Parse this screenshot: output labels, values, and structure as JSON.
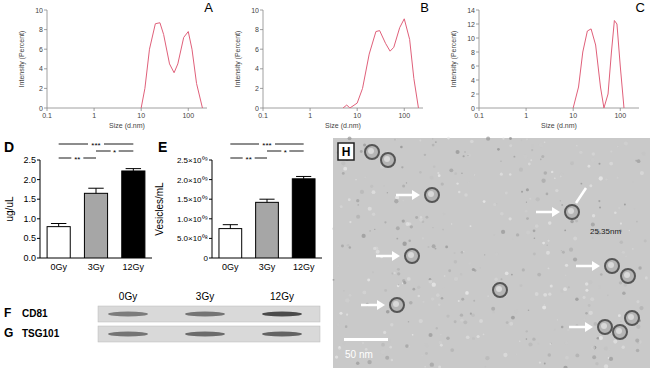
{
  "chart_data": [
    {
      "type": "line",
      "title": "A",
      "xlabel": "Size (d.nm)",
      "ylabel": "Intensity (Percent)",
      "log": "x",
      "grid": false,
      "color": "#e0607a",
      "x": [
        10,
        12,
        15,
        20,
        25,
        30,
        40,
        50,
        60,
        80,
        100,
        120,
        150,
        200
      ],
      "values": [
        0,
        2,
        6,
        8.6,
        8.7,
        7.5,
        4.5,
        3.6,
        4.5,
        7.2,
        7.8,
        6,
        2.5,
        0
      ],
      "xlim": [
        0.1,
        250
      ],
      "xticks": [
        0.1,
        1,
        10,
        100
      ],
      "ylim": [
        0,
        10
      ],
      "yticks": [
        0,
        2,
        4,
        6,
        8,
        10
      ]
    },
    {
      "type": "line",
      "title": "B",
      "xlabel": "Size (d.nm)",
      "ylabel": "Intensity (Percent)",
      "log": "x",
      "grid": false,
      "color": "#e0607a",
      "x": [
        5,
        6,
        7,
        10,
        13,
        18,
        25,
        30,
        40,
        50,
        60,
        80,
        100,
        130,
        160,
        200
      ],
      "values": [
        0,
        0.3,
        0,
        0.5,
        2,
        5.5,
        7.8,
        7.9,
        6.6,
        5.8,
        6.2,
        8.2,
        9.1,
        7,
        3,
        0
      ],
      "xlim": [
        0.1,
        250
      ],
      "xticks": [
        0.1,
        1,
        10,
        100
      ],
      "ylim": [
        0,
        10
      ],
      "yticks": [
        0,
        2,
        4,
        6,
        8,
        10
      ]
    },
    {
      "type": "line",
      "title": "C",
      "xlabel": "Size (d.nm)",
      "ylabel": "Intensity (Percent)",
      "log": "x",
      "grid": false,
      "color": "#e0607a",
      "x": [
        10,
        13,
        16,
        20,
        24,
        30,
        38,
        45,
        55,
        65,
        75,
        85,
        100,
        120
      ],
      "values": [
        0,
        3,
        8,
        11,
        11.3,
        9,
        3,
        0,
        2,
        8,
        12.5,
        12,
        6,
        0
      ],
      "xlim": [
        0.1,
        250
      ],
      "xticks": [
        0.1,
        1,
        10,
        100
      ],
      "ylim": [
        0,
        14
      ],
      "yticks": [
        0,
        2,
        4,
        6,
        8,
        10,
        12,
        14
      ]
    },
    {
      "type": "bar",
      "title": "D",
      "ylabel": "ug/uL",
      "grid": false,
      "categories": [
        "0Gy",
        "3Gy",
        "12Gy"
      ],
      "values": [
        0.8,
        1.65,
        2.22
      ],
      "errors": [
        0.08,
        0.13,
        0.06
      ],
      "colors": [
        "#ffffff",
        "#a6a6a6",
        "#000000"
      ],
      "ylim": [
        0,
        2.5
      ],
      "yticks": [
        {
          "value": 0,
          "label": "0.0"
        },
        {
          "value": 0.5,
          "label": "0.5"
        },
        {
          "value": 1,
          "label": "1.0"
        },
        {
          "value": 1.5,
          "label": "1.5"
        },
        {
          "value": 2,
          "label": "2.0"
        },
        {
          "value": 2.5,
          "label": "2.5"
        }
      ],
      "annotations": [
        {
          "label": "***",
          "from": "0Gy",
          "to": "12Gy"
        },
        {
          "label": "*",
          "from": "3Gy",
          "to": "12Gy"
        },
        {
          "label": "**",
          "from": "0Gy",
          "to": "3Gy"
        }
      ]
    },
    {
      "type": "bar",
      "title": "E",
      "ylabel": "Vesicles/mL",
      "grid": false,
      "categories": [
        "0Gy",
        "3Gy",
        "12Gy"
      ],
      "values": [
        750000000,
        1420000000,
        2020000000
      ],
      "errors": [
        100000000,
        80000000,
        60000000
      ],
      "colors": [
        "#ffffff",
        "#a6a6a6",
        "#000000"
      ],
      "ylim": [
        0,
        2500000000
      ],
      "yticks": [
        0,
        {
          "value": 500000000,
          "label": "5.0×10⁰⁸"
        },
        {
          "value": 1000000000,
          "label": "1.0×10⁰⁹"
        },
        {
          "value": 1500000000,
          "label": "1.5×10⁰⁹"
        },
        {
          "value": 2000000000,
          "label": "2.0×10⁰⁹"
        },
        {
          "value": 2500000000,
          "label": "2.5×10⁰⁹"
        }
      ],
      "annotations": [
        {
          "label": "***",
          "from": "0Gy",
          "to": "12Gy"
        },
        {
          "label": "*",
          "from": "3Gy",
          "to": "12Gy"
        },
        {
          "label": "**",
          "from": "0Gy",
          "to": "3Gy"
        }
      ]
    }
  ],
  "blots": {
    "lanes": [
      "0Gy",
      "3Gy",
      "12Gy"
    ],
    "rows": [
      {
        "label": "F",
        "protein": "CD81"
      },
      {
        "label": "G",
        "protein": "TSG101"
      }
    ]
  },
  "micrograph": {
    "label": "H",
    "measurement": "25.35nm",
    "scale_bar": "50 nm"
  }
}
